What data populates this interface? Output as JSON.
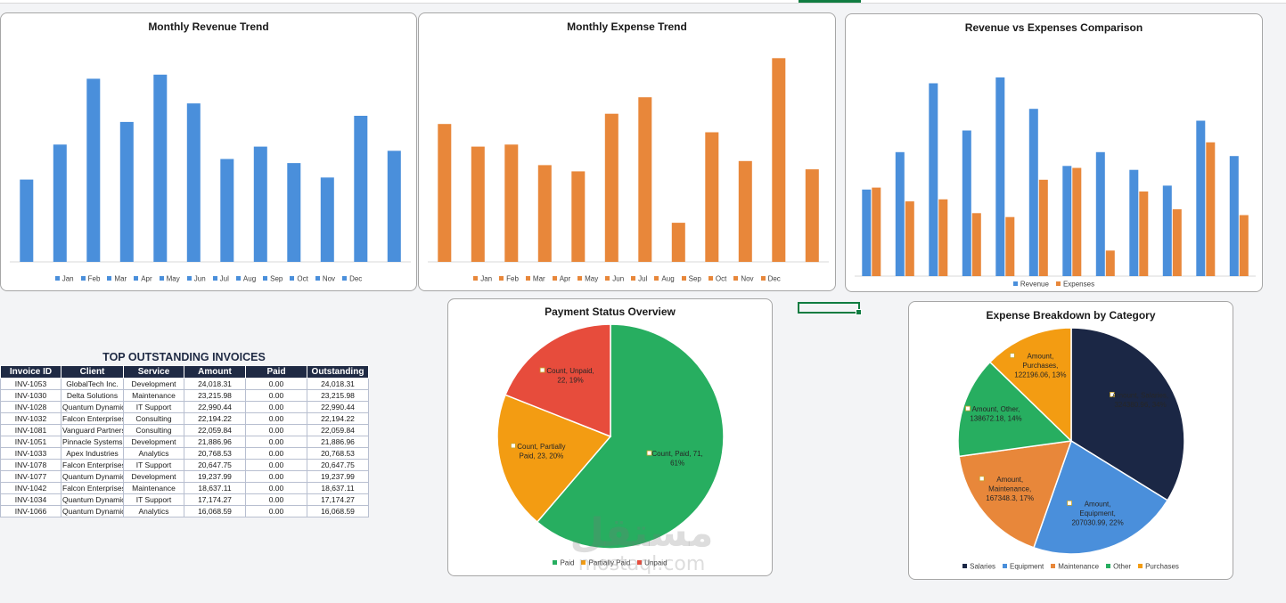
{
  "months": [
    "Jan",
    "Feb",
    "Mar",
    "Apr",
    "May",
    "Jun",
    "Jul",
    "Aug",
    "Sep",
    "Oct",
    "Nov",
    "Dec"
  ],
  "colors": {
    "revenue": "#4a8fdb",
    "expense": "#e8873a",
    "paid": "#27ae60",
    "partially_paid": "#f39c12",
    "unpaid": "#e74c3c",
    "salaries": "#1b2745",
    "equipment": "#4a8fdb",
    "maintenance": "#e8873a",
    "other": "#27ae60",
    "purchases": "#f39c12",
    "table_header": "#1f2a44"
  },
  "chart_data": [
    {
      "id": "revenue",
      "type": "bar",
      "title": "Monthly Revenue Trend",
      "categories": [
        "Jan",
        "Feb",
        "Mar",
        "Apr",
        "May",
        "Jun",
        "Jul",
        "Aug",
        "Sep",
        "Oct",
        "Nov",
        "Dec"
      ],
      "series": [
        {
          "name": "Revenue",
          "values": [
            40,
            57,
            89,
            68,
            91,
            77,
            50,
            56,
            48,
            41,
            71,
            54
          ]
        }
      ],
      "ylim": [
        0,
        100
      ],
      "legend_labels": [
        "Jan",
        "Feb",
        "Mar",
        "Apr",
        "May",
        "Jun",
        "Jul",
        "Aug",
        "Sep",
        "Oct",
        "Nov",
        "Dec"
      ]
    },
    {
      "id": "expense",
      "type": "bar",
      "title": "Monthly Expense Trend",
      "categories": [
        "Jan",
        "Feb",
        "Mar",
        "Apr",
        "May",
        "Jun",
        "Jul",
        "Aug",
        "Sep",
        "Oct",
        "Nov",
        "Dec"
      ],
      "series": [
        {
          "name": "Expenses",
          "values": [
            67,
            56,
            57,
            47,
            44,
            72,
            80,
            19,
            63,
            49,
            99,
            45
          ]
        }
      ],
      "ylim": [
        0,
        100
      ],
      "legend_labels": [
        "Jan",
        "Feb",
        "Mar",
        "Apr",
        "May",
        "Jun",
        "Jul",
        "Aug",
        "Sep",
        "Oct",
        "Nov",
        "Dec"
      ]
    },
    {
      "id": "comparison",
      "type": "bar",
      "title": "Revenue vs Expenses Comparison",
      "categories": [
        "Jan",
        "Feb",
        "Mar",
        "Apr",
        "May",
        "Jun",
        "Jul",
        "Aug",
        "Sep",
        "Oct",
        "Nov",
        "Dec"
      ],
      "series": [
        {
          "name": "Revenue",
          "values": [
            44,
            63,
            98,
            74,
            101,
            85,
            56,
            63,
            54,
            46,
            79,
            61
          ]
        },
        {
          "name": "Expenses",
          "values": [
            45,
            38,
            39,
            32,
            30,
            49,
            55,
            13,
            43,
            34,
            68,
            31
          ]
        }
      ],
      "ylim": [
        0,
        110
      ],
      "legend_labels": [
        "Revenue",
        "Expenses"
      ]
    },
    {
      "id": "payment",
      "type": "pie",
      "title": "Payment Status Overview",
      "slices": [
        {
          "label": "Paid",
          "value": 71,
          "percent": 61,
          "data_label": [
            "Count, Paid, 71,",
            "61%"
          ]
        },
        {
          "label": "Partially Paid",
          "value": 23,
          "percent": 20,
          "data_label": [
            "Count, Partially",
            "Paid, 23, 20%"
          ]
        },
        {
          "label": "Unpaid",
          "value": 22,
          "percent": 19,
          "data_label": [
            "Count, Unpaid,",
            "22, 19%"
          ]
        }
      ],
      "legend_labels": [
        "Paid",
        "Partially Paid",
        "Unpaid"
      ]
    },
    {
      "id": "breakdown",
      "type": "pie",
      "title": "Expense Breakdown by Category",
      "slices": [
        {
          "label": "Salaries",
          "value": 324380.96,
          "percent": 34,
          "data_label": [
            "Amount, Salaries,",
            "324380.96, 34%"
          ]
        },
        {
          "label": "Equipment",
          "value": 207030.99,
          "percent": 22,
          "data_label": [
            "Amount,",
            "Equipment,",
            "207030.99, 22%"
          ]
        },
        {
          "label": "Maintenance",
          "value": 167348.3,
          "percent": 17,
          "data_label": [
            "Amount,",
            "Maintenance,",
            "167348.3, 17%"
          ]
        },
        {
          "label": "Other",
          "value": 138672.18,
          "percent": 14,
          "data_label": [
            "Amount, Other,",
            "138672.18, 14%"
          ]
        },
        {
          "label": "Purchases",
          "value": 122196.06,
          "percent": 13,
          "data_label": [
            "Amount,",
            "Purchases,",
            "122196.06, 13%"
          ]
        }
      ],
      "legend_labels": [
        "Salaries",
        "Equipment",
        "Maintenance",
        "Other",
        "Purchases"
      ]
    }
  ],
  "table": {
    "title": "TOP OUTSTANDING INVOICES",
    "columns": [
      "Invoice ID",
      "Client",
      "Service",
      "Amount",
      "Paid",
      "Outstanding"
    ],
    "rows": [
      [
        "INV-1053",
        "GlobalTech Inc.",
        "Development",
        "24,018.31",
        "0.00",
        "24,018.31"
      ],
      [
        "INV-1030",
        "Delta Solutions",
        "Maintenance",
        "23,215.98",
        "0.00",
        "23,215.98"
      ],
      [
        "INV-1028",
        "Quantum Dynamics",
        "IT Support",
        "22,990.44",
        "0.00",
        "22,990.44"
      ],
      [
        "INV-1032",
        "Falcon Enterprises",
        "Consulting",
        "22,194.22",
        "0.00",
        "22,194.22"
      ],
      [
        "INV-1081",
        "Vanguard Partners",
        "Consulting",
        "22,059.84",
        "0.00",
        "22,059.84"
      ],
      [
        "INV-1051",
        "Pinnacle Systems",
        "Development",
        "21,886.96",
        "0.00",
        "21,886.96"
      ],
      [
        "INV-1033",
        "Apex Industries",
        "Analytics",
        "20,768.53",
        "0.00",
        "20,768.53"
      ],
      [
        "INV-1078",
        "Falcon Enterprises",
        "IT Support",
        "20,647.75",
        "0.00",
        "20,647.75"
      ],
      [
        "INV-1077",
        "Quantum Dynamics",
        "Development",
        "19,237.99",
        "0.00",
        "19,237.99"
      ],
      [
        "INV-1042",
        "Falcon Enterprises",
        "Maintenance",
        "18,637.11",
        "0.00",
        "18,637.11"
      ],
      [
        "INV-1034",
        "Quantum Dynamics",
        "IT Support",
        "17,174.27",
        "0.00",
        "17,174.27"
      ],
      [
        "INV-1066",
        "Quantum Dynamics",
        "Analytics",
        "16,068.59",
        "0.00",
        "16,068.59"
      ]
    ]
  },
  "watermark": {
    "arabic": "مستقل",
    "latin": "mostaql.com"
  }
}
